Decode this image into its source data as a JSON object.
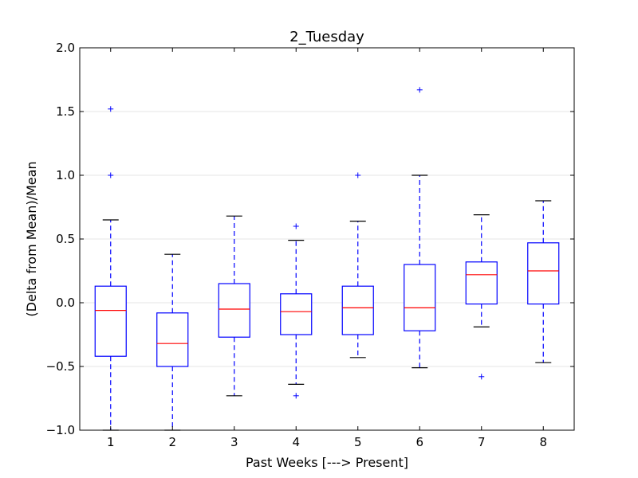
{
  "chart_data": {
    "type": "boxplot",
    "title": "2_Tuesday",
    "xlabel": "Past Weeks [---> Present]",
    "ylabel": "(Delta from Mean)/Mean",
    "ylim": [
      -1.0,
      2.0
    ],
    "xlim": [
      0.5,
      8.5
    ],
    "y_ticks": [
      "−1.0",
      "−0.5",
      "0.0",
      "0.5",
      "1.0",
      "1.5",
      "2.0"
    ],
    "y_tick_values": [
      -1.0,
      -0.5,
      0.0,
      0.5,
      1.0,
      1.5,
      2.0
    ],
    "grid": "horizontal",
    "colors": {
      "box": "#0000ff",
      "median": "#ff0000",
      "whisker": "#0000ff",
      "cap": "#000000",
      "flier": "#0000ff"
    },
    "boxes": [
      {
        "category": "1",
        "whislo": -1.0,
        "q1": -0.42,
        "med": -0.06,
        "q3": 0.13,
        "whishi": 0.65,
        "fliers": [
          1.0,
          1.52
        ]
      },
      {
        "category": "2",
        "whislo": -1.0,
        "q1": -0.5,
        "med": -0.32,
        "q3": -0.08,
        "whishi": 0.38,
        "fliers": []
      },
      {
        "category": "3",
        "whislo": -0.73,
        "q1": -0.27,
        "med": -0.05,
        "q3": 0.15,
        "whishi": 0.68,
        "fliers": []
      },
      {
        "category": "4",
        "whislo": -0.64,
        "q1": -0.25,
        "med": -0.07,
        "q3": 0.07,
        "whishi": 0.49,
        "fliers": [
          0.6,
          -0.73
        ]
      },
      {
        "category": "5",
        "whislo": -0.43,
        "q1": -0.25,
        "med": -0.04,
        "q3": 0.13,
        "whishi": 0.64,
        "fliers": [
          1.0
        ]
      },
      {
        "category": "6",
        "whislo": -0.51,
        "q1": -0.22,
        "med": -0.04,
        "q3": 0.3,
        "whishi": 1.0,
        "fliers": [
          1.67
        ]
      },
      {
        "category": "7",
        "whislo": -0.19,
        "q1": -0.01,
        "med": 0.22,
        "q3": 0.32,
        "whishi": 0.69,
        "fliers": [
          -0.58
        ]
      },
      {
        "category": "8",
        "whislo": -0.47,
        "q1": -0.01,
        "med": 0.25,
        "q3": 0.47,
        "whishi": 0.8,
        "fliers": []
      }
    ]
  }
}
